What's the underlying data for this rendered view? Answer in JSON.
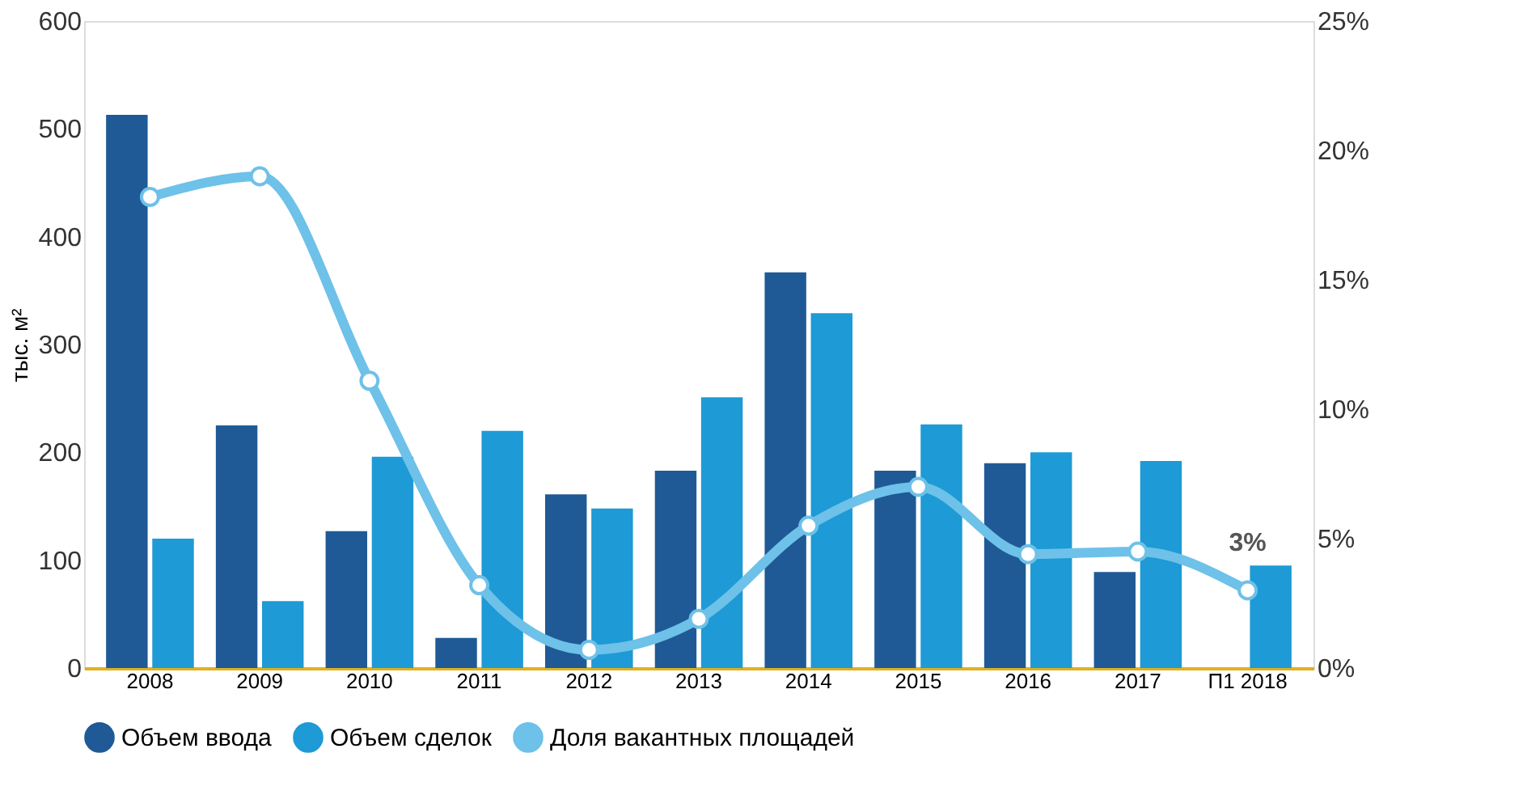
{
  "chart_data": {
    "type": "bar",
    "ylabel": "тыс. м²",
    "categories": [
      "2008",
      "2009",
      "2010",
      "2011",
      "2012",
      "2013",
      "2014",
      "2015",
      "2016",
      "2017",
      "П1 2018"
    ],
    "series": [
      {
        "name": "Объем ввода",
        "color": "#1f5a96",
        "values": [
          513,
          225,
          127,
          28,
          161,
          183,
          367,
          183,
          190,
          89,
          null
        ]
      },
      {
        "name": "Объем сделок",
        "color": "#1e9ad6",
        "values": [
          120,
          62,
          196,
          220,
          148,
          251,
          329,
          226,
          200,
          192,
          95
        ]
      },
      {
        "name": "Доля вакантных площадей",
        "type": "line",
        "axis": "y2",
        "color": "#6ec1e8",
        "marker": "circle",
        "values": [
          18.2,
          19.0,
          11.1,
          3.2,
          0.7,
          1.9,
          5.5,
          7.0,
          4.4,
          4.5,
          3.0
        ]
      }
    ],
    "ylim": [
      0,
      600
    ],
    "yticks": [
      0,
      100,
      200,
      300,
      400,
      500,
      600
    ],
    "y2lim": [
      0,
      25
    ],
    "y2ticks": [
      {
        "value": 0,
        "label": "0%"
      },
      {
        "value": 5,
        "label": "5%"
      },
      {
        "value": 10,
        "label": "10%"
      },
      {
        "value": 15,
        "label": "15%"
      },
      {
        "value": 20,
        "label": "20%"
      },
      {
        "value": 25,
        "label": "25%"
      }
    ],
    "annotations": [
      {
        "text": "3%",
        "x": "П1 2018",
        "y": 95
      }
    ],
    "grid": false,
    "legend": "bottom"
  }
}
